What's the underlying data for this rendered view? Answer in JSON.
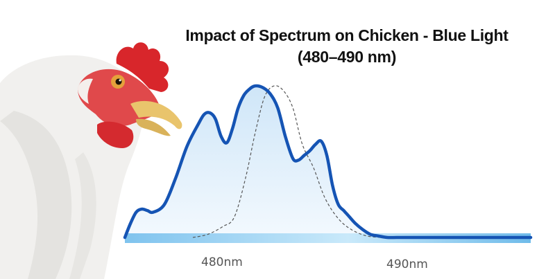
{
  "colors": {
    "curve": "#1554b4",
    "baseline": "#7fc3ee",
    "fill_top": "#cfe6f8",
    "fill_bottom": "#f3f9fe",
    "reference_curve": "#555555"
  },
  "chart_data": {
    "type": "area",
    "title": "Impact of Spectrum on Chicken - Blue Light",
    "subtitle": "(480–490 nm)",
    "xlabel": "",
    "ylabel": "",
    "x_tick_labels": [
      "480nm",
      "490nm"
    ],
    "x_ticks": [
      480,
      490
    ],
    "xlim": [
      476.4,
      497.9
    ],
    "ylim": [
      0,
      1
    ],
    "grid": false,
    "legend": "none",
    "series": [
      {
        "style": "solid-filled",
        "x": [
          476.4,
          476.7,
          477.0,
          477.3,
          477.6,
          477.9,
          478.5,
          479.1,
          479.7,
          480.3,
          480.6,
          480.9,
          481.2,
          481.5,
          481.8,
          482.1,
          482.4,
          482.7,
          483.0,
          483.3,
          483.7,
          484.1,
          484.5,
          484.9,
          485.3,
          485.6,
          485.9,
          486.2,
          486.5,
          486.8,
          487.1,
          487.4,
          487.7,
          488.0,
          488.3,
          488.6,
          489.0,
          489.4,
          489.8,
          490.3,
          490.8,
          491.3,
          491.9,
          492.5,
          493.1,
          493.7,
          494.3,
          494.9,
          495.5,
          496.2,
          497.0,
          497.9
        ],
        "y": [
          0.0,
          0.09,
          0.16,
          0.18,
          0.17,
          0.16,
          0.21,
          0.38,
          0.58,
          0.72,
          0.78,
          0.79,
          0.75,
          0.64,
          0.6,
          0.69,
          0.82,
          0.9,
          0.94,
          0.96,
          0.95,
          0.91,
          0.82,
          0.64,
          0.5,
          0.49,
          0.52,
          0.55,
          0.59,
          0.61,
          0.52,
          0.33,
          0.21,
          0.17,
          0.13,
          0.09,
          0.05,
          0.02,
          0.01,
          0.0,
          0.0,
          0.0,
          0.0,
          0.0,
          0.0,
          0.0,
          0.0,
          0.0,
          0.0,
          0.0,
          0.0,
          0.0
        ]
      },
      {
        "style": "dashed",
        "x": [
          480.0,
          480.8,
          481.6,
          482.2,
          482.8,
          483.3,
          483.8,
          484.3,
          484.8,
          485.3,
          485.8,
          486.4,
          487.0,
          487.7,
          488.4,
          489.2,
          490.0
        ],
        "y": [
          0.0,
          0.02,
          0.07,
          0.13,
          0.38,
          0.66,
          0.89,
          0.96,
          0.93,
          0.82,
          0.59,
          0.44,
          0.25,
          0.12,
          0.05,
          0.01,
          0.0
        ]
      }
    ]
  }
}
